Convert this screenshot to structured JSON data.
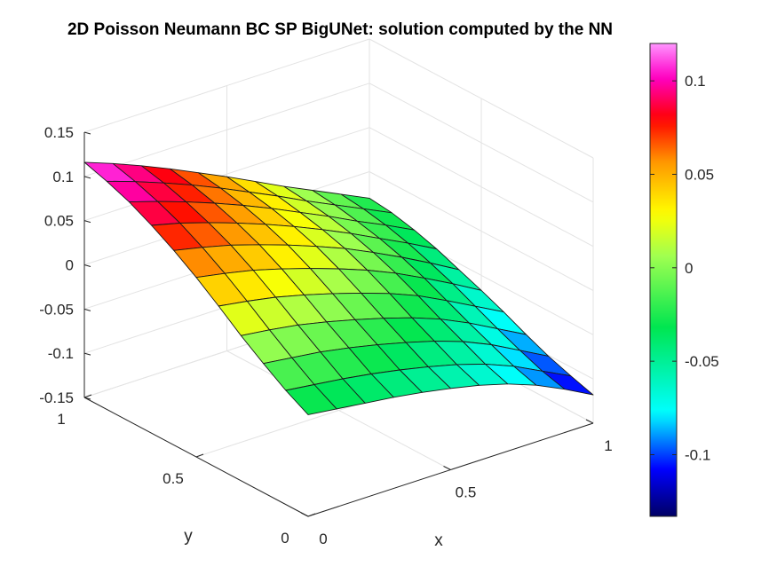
{
  "chart_data": {
    "type": "surface",
    "title": "2D Poisson Neumann BC SP BigUNet: solution computed by the NN",
    "xlabel": "x",
    "ylabel": "y",
    "zlabel": "",
    "xlim": [
      0,
      1
    ],
    "ylim": [
      0,
      1
    ],
    "zlim": [
      -0.15,
      0.15
    ],
    "x_ticks": [
      "0",
      "0.5",
      "1"
    ],
    "y_ticks": [
      "0",
      "0.5",
      "1"
    ],
    "z_ticks": [
      "-0.15",
      "-0.1",
      "-0.05",
      "0",
      "0.05",
      "0.1",
      "0.15"
    ],
    "colormap": "hsv",
    "clim": [
      -0.133,
      0.12
    ],
    "colorbar_ticks": [
      "-0.1",
      "-0.05",
      "0",
      "0.05",
      "0.1"
    ],
    "colorbar_values": [
      -0.1,
      -0.05,
      0,
      0.05,
      0.1
    ],
    "grid": true,
    "x": [
      0,
      0.1,
      0.2,
      0.3,
      0.4,
      0.5,
      0.6,
      0.7,
      0.8,
      0.9,
      1
    ],
    "y": [
      0,
      0.1,
      0.2,
      0.3,
      0.4,
      0.5,
      0.6,
      0.7,
      0.8,
      0.9,
      1
    ],
    "z_rows_by_y": [
      [
        -0.035,
        -0.039,
        -0.043,
        -0.047,
        -0.052,
        -0.058,
        -0.065,
        -0.074,
        -0.086,
        -0.101,
        -0.118
      ],
      [
        -0.021,
        -0.025,
        -0.029,
        -0.034,
        -0.04,
        -0.047,
        -0.055,
        -0.065,
        -0.078,
        -0.094,
        -0.11
      ],
      [
        -0.004,
        -0.008,
        -0.012,
        -0.018,
        -0.025,
        -0.033,
        -0.042,
        -0.053,
        -0.067,
        -0.084,
        -0.101
      ],
      [
        0.014,
        0.01,
        0.005,
        -0.002,
        -0.01,
        -0.019,
        -0.029,
        -0.041,
        -0.056,
        -0.073,
        -0.09
      ],
      [
        0.034,
        0.029,
        0.023,
        0.015,
        0.006,
        -0.004,
        -0.015,
        -0.028,
        -0.044,
        -0.061,
        -0.078
      ],
      [
        0.053,
        0.047,
        0.04,
        0.031,
        0.021,
        0.01,
        -0.002,
        -0.016,
        -0.032,
        -0.049,
        -0.067
      ],
      [
        0.07,
        0.063,
        0.055,
        0.045,
        0.034,
        0.022,
        0.009,
        -0.006,
        -0.022,
        -0.039,
        -0.057
      ],
      [
        0.085,
        0.077,
        0.067,
        0.056,
        0.044,
        0.031,
        0.017,
        0.002,
        -0.014,
        -0.03,
        -0.047
      ],
      [
        0.098,
        0.088,
        0.077,
        0.065,
        0.052,
        0.038,
        0.023,
        0.008,
        -0.008,
        -0.023,
        -0.039
      ],
      [
        0.108,
        0.097,
        0.085,
        0.072,
        0.058,
        0.043,
        0.028,
        0.012,
        -0.003,
        -0.018,
        -0.033
      ],
      [
        0.116,
        0.104,
        0.091,
        0.077,
        0.062,
        0.047,
        0.031,
        0.015,
        0.0,
        -0.015,
        -0.03
      ]
    ]
  }
}
